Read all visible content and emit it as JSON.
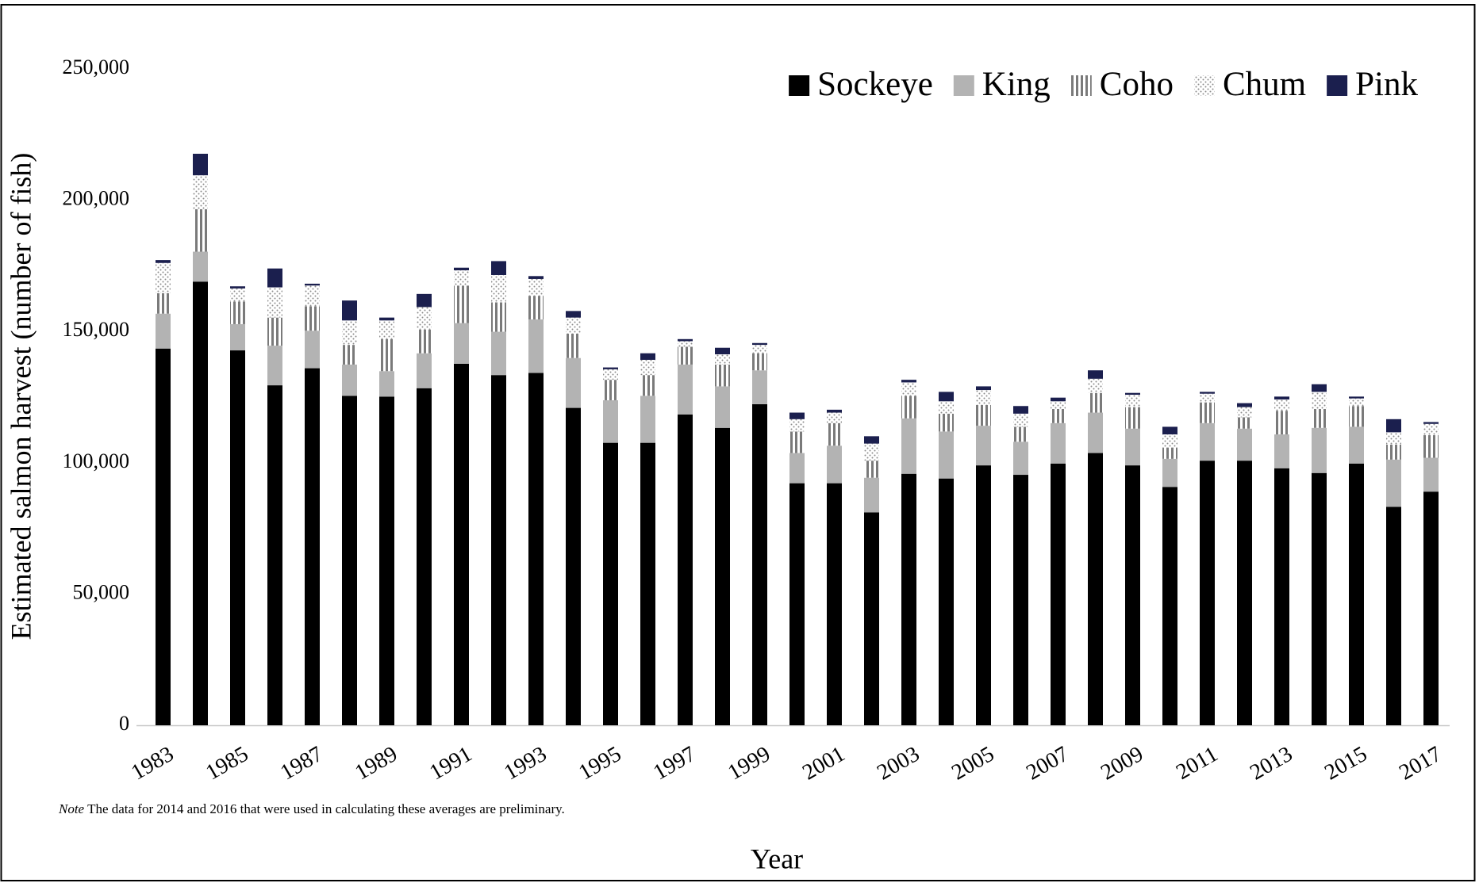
{
  "chart_data": {
    "type": "stacked-bar",
    "y_label": "Estimated salmon harvest (number of fish)",
    "x_label": "Year",
    "note_label": "Note",
    "note": "The data for 2014 and 2016 that were used in calculating these averages are preliminary.",
    "categories": [
      "1983",
      null,
      "1985",
      null,
      "1987",
      null,
      "1989",
      null,
      "1991",
      null,
      "1993",
      null,
      "1995",
      null,
      "1997",
      null,
      "1999",
      null,
      "2001",
      null,
      "2003",
      null,
      "2005",
      null,
      "2007",
      null,
      "2009",
      null,
      "2011",
      null,
      "2013",
      null,
      "2015",
      null,
      "2017"
    ],
    "series": [
      {
        "name": "Sockeye",
        "color": "#000000",
        "pattern": "solid",
        "values": [
          143500,
          169000,
          142800,
          129500,
          136000,
          125500,
          125200,
          128400,
          137700,
          133400,
          134200,
          120900,
          107600,
          107600,
          118400,
          113300,
          122300,
          92200,
          92200,
          81100,
          95800,
          94000,
          99000,
          95400,
          99700,
          103700,
          99000,
          90800,
          100800,
          100800,
          97900,
          96100,
          99700,
          83200,
          89000
        ]
      },
      {
        "name": "King",
        "color": "#b3b3b3",
        "pattern": "solid",
        "values": [
          13300,
          11400,
          10000,
          15100,
          14300,
          11900,
          9700,
          13300,
          15500,
          16500,
          20400,
          19000,
          16200,
          17900,
          19000,
          15800,
          12900,
          11500,
          14300,
          13200,
          21100,
          17900,
          15100,
          12600,
          15400,
          15400,
          14000,
          10700,
          14300,
          12200,
          12900,
          17200,
          14000,
          18000,
          12900
        ]
      },
      {
        "name": "Coho",
        "color": "#7a7a7a",
        "pattern": "vertical-stripes",
        "values": [
          7800,
          16200,
          8600,
          10700,
          9300,
          7500,
          12200,
          9000,
          14300,
          11200,
          9000,
          9300,
          7800,
          7900,
          6800,
          8300,
          6500,
          8200,
          8600,
          6500,
          8600,
          6800,
          7900,
          5700,
          5400,
          7500,
          8200,
          4300,
          7900,
          4300,
          9000,
          7200,
          7900,
          5700,
          8600
        ]
      },
      {
        "name": "Chum",
        "color": "#8c8c8c",
        "pattern": "dots",
        "values": [
          11500,
          12900,
          5000,
          11500,
          7900,
          9300,
          7100,
          8600,
          5800,
          10400,
          6400,
          6100,
          4000,
          5800,
          2100,
          3900,
          3200,
          4700,
          4000,
          6500,
          5100,
          4700,
          5700,
          5000,
          2900,
          5400,
          4700,
          5000,
          3300,
          3900,
          4300,
          6500,
          2900,
          4700,
          4300
        ]
      },
      {
        "name": "Pink",
        "color": "#1b1f4e",
        "pattern": "solid",
        "values": [
          1100,
          8200,
          800,
          7200,
          700,
          7600,
          1100,
          5000,
          1000,
          5300,
          1100,
          2500,
          700,
          2500,
          800,
          2500,
          700,
          2500,
          1100,
          2800,
          1000,
          3600,
          1400,
          2900,
          1400,
          3200,
          700,
          2900,
          700,
          1500,
          1100,
          2900,
          700,
          5000,
          700
        ]
      }
    ],
    "ylim": [
      0,
      250000
    ],
    "yticks": [
      {
        "value": 0,
        "label": "0"
      },
      {
        "value": 50000,
        "label": "50,000"
      },
      {
        "value": 100000,
        "label": "100,000"
      },
      {
        "value": 150000,
        "label": "150,000"
      },
      {
        "value": 200000,
        "label": "200,000"
      },
      {
        "value": 250000,
        "label": "250,000"
      }
    ],
    "grid": false,
    "legend": "top-right"
  }
}
